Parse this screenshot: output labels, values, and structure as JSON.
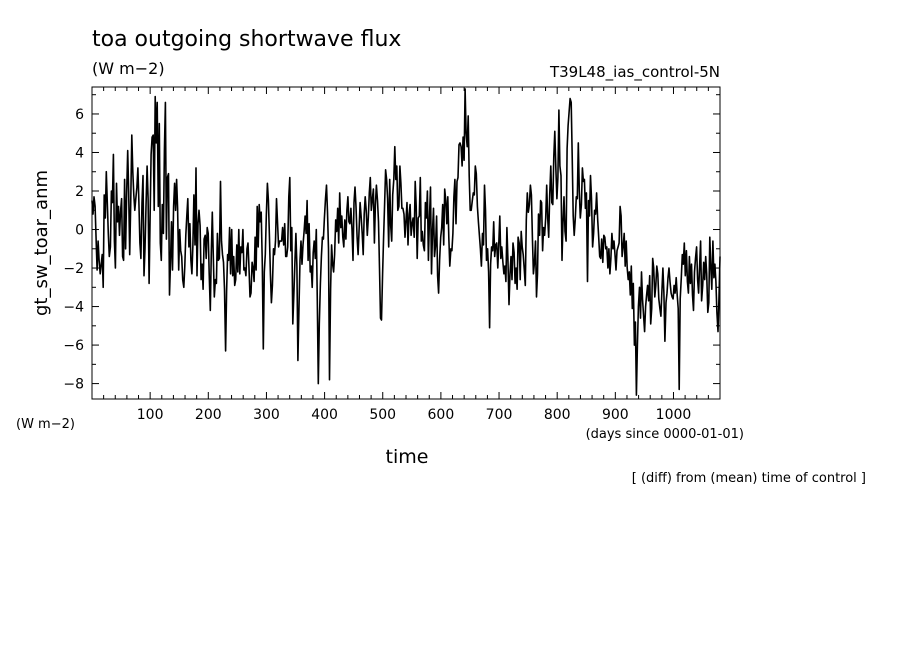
{
  "chart_data": {
    "type": "line",
    "title": "toa outgoing shortwave flux",
    "units": "(W m−2)",
    "run_name": "T39L48_ias_control-5N",
    "ylabel": "gt_sw_toar_anm",
    "ylabel_units": "(W m−2)",
    "xlabel": "time",
    "x_units": "(days since 0000-01-01)",
    "note": "[ (diff) from (mean) time of control ]",
    "xlim": [
      0,
      1080
    ],
    "ylim": [
      -8.8,
      7.4
    ],
    "x_ticks": [
      100,
      200,
      300,
      400,
      500,
      600,
      700,
      800,
      900,
      1000
    ],
    "x_tick_labels": [
      "100",
      "200",
      "300",
      "400",
      "500",
      "600",
      "700",
      "800",
      "900",
      "1000"
    ],
    "y_ticks": [
      6,
      4,
      2,
      0,
      -2,
      -4,
      -6,
      -8
    ],
    "y_tick_labels": [
      "6",
      "4",
      "2",
      "0",
      "−2",
      "−4",
      "−6",
      "−8"
    ],
    "grid": false,
    "x_step": 3,
    "series": [
      {
        "values": [
          1.5,
          0.8,
          1.7,
          1.2,
          -0.5,
          -2.1,
          -0.6,
          -1.6,
          -2.3,
          -1.8,
          -1.3,
          -3.0,
          1.8,
          0.6,
          3.0,
          1.4,
          -0.2,
          -1.4,
          -0.9,
          2.0,
          1.4,
          3.9,
          -0.6,
          -2.0,
          2.4,
          0.4,
          1.2,
          -0.3,
          0.9,
          1.6,
          -1.4,
          -1.6,
          2.6,
          -1.0,
          2.0,
          4.1,
          1.9,
          -1.3,
          1.3,
          4.9,
          3.0,
          1.8,
          1.0,
          1.6,
          2.2,
          3.2,
          1.4,
          -0.7,
          -1.5,
          1.4,
          2.8,
          -2.4,
          -1.0,
          1.2,
          3.3,
          1.6,
          -2.8,
          0.6,
          3.9,
          4.8,
          4.9,
          1.0,
          6.9,
          4.5,
          6.6,
          1.2,
          5.5,
          -0.7,
          -1.6,
          1.3,
          -0.2,
          4.1,
          6.6,
          -0.5,
          2.7,
          2.9,
          -3.4,
          -1.7,
          0.4,
          -2.1,
          1.2,
          2.4,
          1.0,
          2.6,
          1.1,
          -2.1,
          0.0,
          -1.1,
          -1.4,
          -2.6,
          -3.0,
          -1.9,
          -0.3,
          0.7,
          1.6,
          -0.9,
          0.3,
          -1.6,
          -2.3,
          -0.8,
          1.8,
          -0.8,
          3.2,
          -2.4,
          0.3,
          1.0,
          0.2,
          -2.6,
          -1.8,
          -3.1,
          -0.5,
          -0.3,
          -1.5,
          0.1,
          -0.2,
          -2.3,
          -4.2,
          -1.2,
          0.9,
          -1.4,
          -3.5,
          -2.6,
          -2.8,
          -0.2,
          -1.6,
          -1.5,
          2.5,
          -0.6,
          -1.3,
          -1.7,
          -3.1,
          -6.3,
          -3.2,
          -1.3,
          -1.6,
          0.1,
          -2.3,
          0.0,
          -2.4,
          -1.4,
          -2.9,
          -2.6,
          -0.8,
          -2.2,
          0.0,
          -2.3,
          -0.9,
          -1.2,
          0.0,
          -2.1,
          -2.0,
          -2.4,
          -1.0,
          -0.7,
          -2.0,
          -3.5,
          -3.3,
          -1.7,
          -2.0,
          -2.7,
          -0.4,
          -2.1,
          1.2,
          -0.9,
          1.3,
          0.4,
          0.9,
          -1.8,
          -6.2,
          -2.2,
          -1.3,
          0.7,
          2.4,
          1.5,
          -0.3,
          -2.3,
          -3.8,
          -2.9,
          -1.0,
          -1.3,
          -0.6,
          1.6,
          0.4,
          -0.9,
          -0.6,
          -0.6,
          -0.6,
          0.1,
          -0.8,
          0.3,
          -1.4,
          -1.4,
          -0.9,
          1.7,
          2.7,
          -1.1,
          0.1,
          -4.9,
          -3.3,
          -1.7,
          -0.2,
          -1.9,
          -6.8,
          -4.0,
          -1.6,
          -0.6,
          -1.8,
          -0.8,
          -0.1,
          0.7,
          -0.2,
          1.5,
          -1.6,
          0.3,
          -2.2,
          -1.9,
          -3.0,
          -1.2,
          -0.6,
          -1.5,
          0.0,
          -3.7,
          -8.0,
          -4.9,
          -2.8,
          -1.4,
          -0.4,
          -0.5,
          0.6,
          1.6,
          2.3,
          0.9,
          -1.0,
          -7.8,
          -3.1,
          -0.8,
          -1.8,
          -2.2,
          -1.3,
          0.5,
          -0.1,
          1.1,
          -0.7,
          1.9,
          0.1,
          0.7,
          -0.4,
          -0.9,
          0.5,
          -0.5,
          1.0,
          1.7,
          0.4,
          0.3,
          1.1,
          0.0,
          -1.6,
          1.4,
          2.2,
          1.2,
          -0.4,
          -1.3,
          0.0,
          1.4,
          0.7,
          -0.2,
          -1.3,
          0.8,
          1.7,
          1.0,
          -0.3,
          0.6,
          1.9,
          2.7,
          1.0,
          1.6,
          2.1,
          -0.7,
          1.3,
          2.3,
          1.5,
          0.4,
          -2.0,
          -4.6,
          -4.7,
          -2.3,
          -0.4,
          1.3,
          3.1,
          2.6,
          1.6,
          -0.9,
          2.6,
          0.2,
          -0.6,
          1.8,
          2.6,
          4.3,
          2.6,
          3.3,
          1.0,
          1.2,
          3.3,
          2.4,
          1.1,
          1.1,
          0.8,
          -0.4,
          0.5,
          1.4,
          -0.8,
          0.8,
          1.3,
          -0.3,
          0.3,
          0.6,
          -0.4,
          2.5,
          1.2,
          -1.5,
          0.6,
          0.7,
          2.7,
          -0.6,
          -0.1,
          -0.8,
          -1.1,
          1.4,
          0.6,
          2.0,
          -1.6,
          0.5,
          2.2,
          -2.3,
          -0.1,
          1.1,
          -1.4,
          -0.8,
          0.7,
          -2.4,
          -3.3,
          -1.6,
          -0.4,
          0.1,
          1.3,
          -0.8,
          2.1,
          1.5,
          0.3,
          1.7,
          -0.4,
          -1.9,
          -1.0,
          -1.1,
          -0.2,
          1.7,
          2.6,
          0.3,
          2.5,
          2.7,
          4.4,
          4.5,
          4.3,
          3.3,
          4.8,
          3.6,
          7.3,
          5.0,
          4.3,
          5.9,
          2.8,
          1.0,
          1.0,
          1.5,
          1.9,
          1.8,
          3.3,
          2.9,
          1.2,
          0.4,
          -0.3,
          -1.0,
          -1.9,
          -0.2,
          -0.8,
          2.3,
          1.0,
          -1.6,
          -1.0,
          -2.2,
          -5.1,
          -1.8,
          -0.9,
          -1.1,
          0.4,
          -1.4,
          -0.8,
          -0.7,
          -2.0,
          -0.7,
          0.7,
          -1.5,
          -0.9,
          -1.7,
          -2.3,
          -1.9,
          -2.7,
          0.1,
          -1.5,
          -3.9,
          -2.3,
          -1.4,
          -2.6,
          -0.7,
          -1.2,
          -2.8,
          -2.0,
          -3.1,
          -0.4,
          -0.7,
          -2.6,
          -0.1,
          -0.9,
          -1.3,
          -2.1,
          -2.9,
          0.5,
          1.9,
          0.9,
          1.3,
          2.3,
          1.8,
          -0.4,
          -2.3,
          -1.7,
          -0.6,
          -3.5,
          -2.3,
          0.8,
          -0.3,
          1.5,
          1.4,
          -1.1,
          0.1,
          -0.3,
          0.6,
          2.3,
          0.6,
          -0.4,
          1.8,
          3.3,
          1.4,
          1.3,
          3.8,
          5.1,
          3.1,
          1.6,
          2.7,
          6.2,
          3.3,
          2.8,
          -1.6,
          0.4,
          1.7,
          -0.1,
          -0.6,
          4.2,
          5.4,
          6.1,
          6.8,
          6.6,
          3.8,
          0.7,
          -0.3,
          0.5,
          1.7,
          1.6,
          4.5,
          2.0,
          0.6,
          1.3,
          3.2,
          2.5,
          2.6,
          1.1,
          1.9,
          -2.7,
          1.5,
          0.7,
          2.8,
          1.6,
          -0.9,
          -0.2,
          1.0,
          0.8,
          1.9,
          0.5,
          -0.4,
          -1.4,
          -1.5,
          -0.5,
          -1.7,
          -0.3,
          -0.4,
          -1.0,
          -0.9,
          -2.0,
          -1.0,
          -2.3,
          -1.5,
          -0.2,
          -1.0,
          -0.6,
          -1.3,
          -2.1,
          -1.1,
          -0.9,
          -0.7,
          1.2,
          0.7,
          -1.4,
          -0.9,
          -0.2,
          -1.9,
          -0.6,
          -2.0,
          -2.6,
          -2.2,
          -3.4,
          -1.9,
          -4.1,
          -2.8,
          -6.0,
          -4.8,
          -8.6,
          -6.0,
          -4.0,
          -3.0,
          -4.6,
          -2.2,
          -3.6,
          -4.4,
          -5.3,
          -4.0,
          -3.4,
          -2.9,
          -3.7,
          -2.4,
          -4.9,
          -4.1,
          -1.5,
          -2.0,
          -3.5,
          -2.9,
          -1.9,
          -2.3,
          -3.6,
          -4.1,
          -4.5,
          -3.2,
          -2.0,
          -3.3,
          -5.8,
          -3.8,
          -3.3,
          -2.5,
          -2.0,
          -2.7,
          -3.3,
          -3.5,
          -3.6,
          -2.9,
          -3.3,
          -2.5,
          -3.4,
          -4.1,
          -8.3,
          -3.6,
          -2.5,
          -1.3,
          -1.8,
          -0.7,
          -2.4,
          -1.1,
          -2.7,
          -3.3,
          -1.4,
          -2.8,
          -1.8,
          -3.4,
          -4.2,
          -2.2,
          -1.5,
          -0.9,
          -2.6,
          -3.3,
          -1.9,
          -0.6,
          -3.7,
          -2.9,
          -1.7,
          -2.6,
          -1.4,
          -2.3,
          -4.3,
          -3.8,
          -0.4,
          -1.9,
          -3.1,
          -0.6,
          -2.5,
          -1.8,
          -2.7,
          -4.3,
          -5.3,
          -3.5,
          -1.4
        ]
      }
    ]
  }
}
